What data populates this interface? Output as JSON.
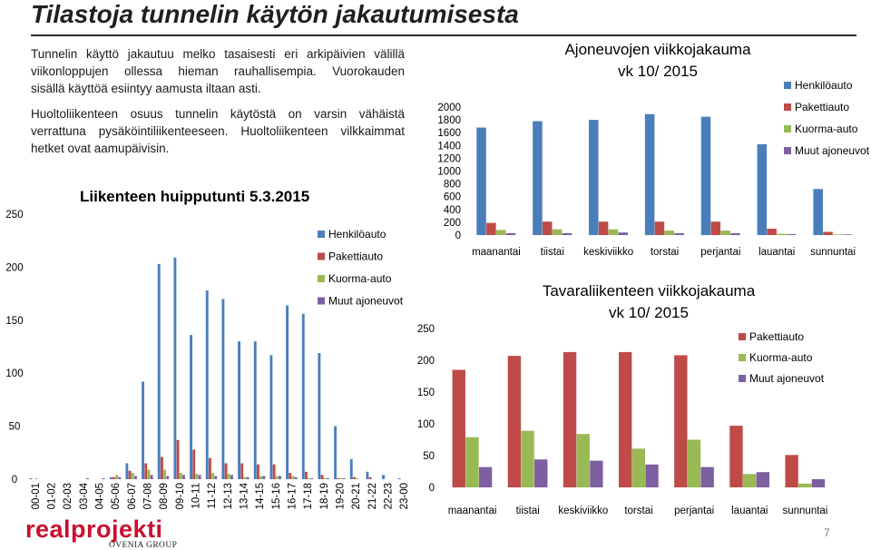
{
  "slide": {
    "title": "Tilastoja tunnelin käytön jakautumisesta",
    "paragraph1": [
      "Tunnelin käyttö jakautuu melko tasaisesti eri arkipäivien välillä",
      "viikonloppujen ollessa hieman rauhallisempia. Vuorokauden",
      "sisällä käyttöä esiintyy aamusta iltaan asti."
    ],
    "paragraph2": [
      "Huoltoliikenteen osuus tunnelin käytöstä on varsin vähäistä",
      "verrattuna pysäköintiliikenteeseen. Huoltoliikenteen vilkkaimmat",
      "hetket ovat aamupäivisin."
    ],
    "logo_text": "realprojekti",
    "logo_subtext": "OVENIA GROUP",
    "page_number": "7"
  },
  "colors": {
    "henkiloauto": "#4a7ebb",
    "pakettiauto": "#be4b48",
    "kuorma_auto": "#98b954",
    "muut": "#7d60a0"
  },
  "chart_data": [
    {
      "type": "bar",
      "title": "Liikenteen huipputunti 5.3.2015",
      "categories": [
        "00-01",
        "01-02",
        "02-03",
        "03-04",
        "04-05",
        "05-06",
        "06-07",
        "07-08",
        "08-09",
        "09-10",
        "10-11",
        "11-12",
        "12-13",
        "13-14",
        "14-15",
        "15-16",
        "16-17",
        "17-18",
        "18-19",
        "19-20",
        "20-21",
        "21-22",
        "22-23",
        "23-00"
      ],
      "ylim": [
        0,
        250
      ],
      "yticks": [
        "0",
        "50",
        "100",
        "150",
        "200",
        "250"
      ],
      "legend_position": "right",
      "series": [
        {
          "name": "Henkilöauto",
          "values": [
            1,
            0,
            0,
            0,
            0,
            2,
            15,
            92,
            203,
            209,
            136,
            178,
            170,
            130,
            130,
            117,
            164,
            156,
            119,
            50,
            19,
            7,
            4,
            1
          ]
        },
        {
          "name": "Pakettiauto",
          "values": [
            0,
            0,
            0,
            0,
            0,
            2,
            8,
            15,
            21,
            37,
            28,
            20,
            15,
            15,
            14,
            14,
            6,
            7,
            4,
            1,
            2,
            2,
            0,
            0
          ]
        },
        {
          "name": "Kuorma-auto",
          "values": [
            1,
            0,
            0,
            0,
            0,
            4,
            6,
            9,
            9,
            6,
            5,
            6,
            5,
            2,
            3,
            3,
            3,
            1,
            1,
            1,
            1,
            0,
            0,
            0
          ]
        },
        {
          "name": "Muut ajoneuvot",
          "values": [
            0,
            0,
            0,
            1,
            1,
            2,
            3,
            4,
            3,
            4,
            4,
            3,
            4,
            2,
            3,
            3,
            2,
            1,
            1,
            1,
            0,
            0,
            0,
            0
          ]
        }
      ]
    },
    {
      "type": "bar",
      "title": "Ajoneuvojen viikkojakauma vk 10/ 2015",
      "categories": [
        "maanantai",
        "tiistai",
        "keskiviikko",
        "torstai",
        "perjantai",
        "lauantai",
        "sunnuntai"
      ],
      "ylim": [
        0,
        2000
      ],
      "yticks": [
        "0",
        "200",
        "400",
        "600",
        "800",
        "1000",
        "1200",
        "1400",
        "1600",
        "1800",
        "2000"
      ],
      "legend_position": "top-right",
      "series": [
        {
          "name": "Henkilöauto",
          "values": [
            1680,
            1780,
            1800,
            1890,
            1850,
            1420,
            720
          ]
        },
        {
          "name": "Pakettiauto",
          "values": [
            190,
            210,
            210,
            210,
            210,
            100,
            50
          ]
        },
        {
          "name": "Kuorma-auto",
          "values": [
            80,
            90,
            90,
            70,
            70,
            20,
            10
          ]
        },
        {
          "name": "Muut ajoneuvot",
          "values": [
            30,
            30,
            40,
            30,
            30,
            15,
            10
          ]
        }
      ]
    },
    {
      "type": "bar",
      "title": "Tavaraliikenteen viikkojakauma vk 10/ 2015",
      "categories": [
        "maanantai",
        "tiistai",
        "keskiviikko",
        "torstai",
        "perjantai",
        "lauantai",
        "sunnuntai"
      ],
      "ylim": [
        0,
        250
      ],
      "yticks": [
        "0",
        "50",
        "100",
        "150",
        "200",
        "250"
      ],
      "legend_position": "right",
      "series": [
        {
          "name": "Pakettiauto",
          "values": [
            185,
            207,
            213,
            213,
            208,
            97,
            51
          ]
        },
        {
          "name": "Kuorma-auto",
          "values": [
            79,
            89,
            84,
            61,
            75,
            21,
            6
          ]
        },
        {
          "name": "Muut ajoneuvot",
          "values": [
            32,
            44,
            42,
            36,
            32,
            24,
            13
          ]
        }
      ]
    }
  ]
}
